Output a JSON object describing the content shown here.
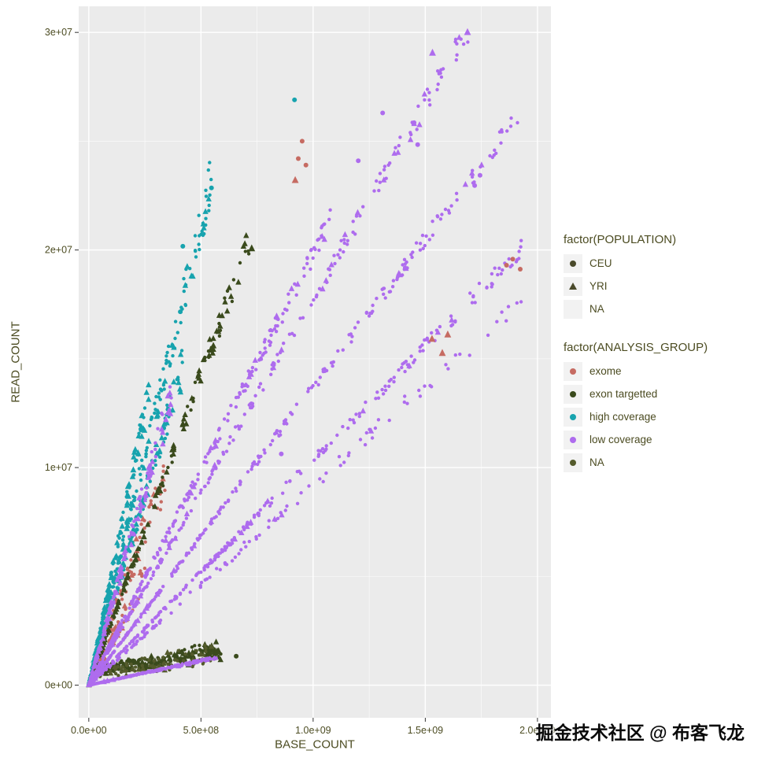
{
  "watermark": "掘金技术社区 @ 布客飞龙",
  "colors": {
    "panel": "#EBEBEB",
    "grid_major": "#FFFFFF",
    "grid_minor": "#F5F5F5",
    "tick_mark": "#333333",
    "text": "#4C4C22",
    "population_glyph": "#4A4A2B",
    "groups": {
      "exome": "#C66B62",
      "exon targetted": "#3A4A1C",
      "high coverage": "#17A3AE",
      "low coverage": "#AE6CEE",
      "NA": "#545B2C"
    }
  },
  "legend": {
    "population": {
      "title": "factor(POPULATION)",
      "items": [
        {
          "label": "CEU",
          "shape": "circle"
        },
        {
          "label": "YRI",
          "shape": "triangle"
        },
        {
          "label": "NA",
          "shape": "none"
        }
      ]
    },
    "analysis_group": {
      "title": "factor(ANALYSIS_GROUP)",
      "items": [
        {
          "label": "exome",
          "color": "#C66B62"
        },
        {
          "label": "exon targetted",
          "color": "#3A4A1C"
        },
        {
          "label": "high coverage",
          "color": "#17A3AE"
        },
        {
          "label": "low coverage",
          "color": "#AE6CEE"
        },
        {
          "label": "NA",
          "color": "#545B2C"
        }
      ]
    }
  },
  "chart_data": {
    "type": "scatter",
    "title": "",
    "xlabel": "BASE_COUNT",
    "ylabel": "READ_COUNT",
    "xlim": [
      -45000000.0,
      2060000000.0
    ],
    "ylim": [
      -1500000.0,
      31200000.0
    ],
    "x_ticks": [
      {
        "v": 0,
        "label": "0.0e+00"
      },
      {
        "v": 500000000.0,
        "label": "5.0e+08"
      },
      {
        "v": 1000000000.0,
        "label": "1.0e+09"
      },
      {
        "v": 1500000000.0,
        "label": "1.5e+09"
      },
      {
        "v": 2000000000.0,
        "label": "2.0e+09"
      }
    ],
    "y_ticks": [
      {
        "v": 0,
        "label": "0e+00"
      },
      {
        "v": 10000000.0,
        "label": "1e+07"
      },
      {
        "v": 20000000.0,
        "label": "2e+07"
      },
      {
        "v": 30000000.0,
        "label": "3e+07"
      }
    ],
    "x_minor": [
      250000000.0,
      750000000.0,
      1250000000.0,
      1750000000.0
    ],
    "y_minor": [
      5000000.0,
      15000000.0,
      25000000.0
    ],
    "legend_position": "right",
    "grid": true,
    "note": "Points lie on linear rays from the origin (READ_COUNT = slope * BASE_COUNT); shape encodes POPULATION (circle=CEU/NA, triangle=YRI), color encodes ANALYSIS_GROUP.",
    "rays": [
      {
        "group": "exon targetted",
        "slope": 0.0017,
        "intercept": 600000.0,
        "x_min": 20000000.0,
        "x_max": 590000000.0,
        "n": 240,
        "spread": 0.28,
        "triangle_frac": 0.45,
        "density": 1.2
      },
      {
        "group": "NA",
        "slope": 0.002,
        "intercept": 400000.0,
        "x_min": 30000000.0,
        "x_max": 550000000.0,
        "n": 70,
        "spread": 0.5,
        "triangle_frac": 0.3,
        "density": 1.2
      },
      {
        "group": "high coverage",
        "slope": 0.05,
        "intercept": 0,
        "x_min": 0,
        "x_max": 270000000.0,
        "n": 130,
        "spread": 0.06,
        "triangle_frac": 0.4,
        "density": 1.5
      },
      {
        "group": "high coverage",
        "slope": 0.0425,
        "intercept": 0,
        "x_min": 0,
        "x_max": 550000000.0,
        "n": 220,
        "spread": 0.05,
        "triangle_frac": 0.2,
        "density": 1.6
      },
      {
        "group": "high coverage",
        "slope": 0.035,
        "intercept": 0,
        "x_min": 0,
        "x_max": 430000000.0,
        "n": 170,
        "spread": 0.06,
        "triangle_frac": 0.3,
        "density": 1.5
      },
      {
        "group": "exome",
        "slope": 0.0285,
        "intercept": 0,
        "x_min": 0,
        "x_max": 340000000.0,
        "n": 80,
        "spread": 0.12,
        "triangle_frac": 0.3,
        "density": 1.5
      },
      {
        "group": "exome",
        "slope": 0.02,
        "intercept": 0,
        "x_min": 0,
        "x_max": 260000000.0,
        "n": 60,
        "spread": 0.15,
        "triangle_frac": 0.3,
        "density": 1.5
      },
      {
        "group": "exon targetted",
        "slope": 0.0285,
        "intercept": 0,
        "x_min": 0,
        "x_max": 720000000.0,
        "n": 170,
        "spread": 0.035,
        "triangle_frac": 0.6,
        "density": 1.6
      },
      {
        "group": "low coverage",
        "slope": 0.00225,
        "intercept": 0,
        "x_min": 0,
        "x_max": 570000000.0,
        "n": 190,
        "spread": 0.05,
        "triangle_frac": 0.05,
        "density": 1.3
      },
      {
        "group": "low coverage",
        "slope": 0.036,
        "intercept": 0,
        "x_min": 0,
        "x_max": 370000000.0,
        "n": 150,
        "spread": 0.07,
        "triangle_frac": 0.5,
        "density": 1.5
      },
      {
        "group": "low coverage",
        "slope": 0.0092,
        "intercept": 0,
        "x_min": 0,
        "x_max": 1950000000.0,
        "n": 130,
        "spread": 0.03,
        "triangle_frac": 0.05,
        "density": 1.9
      },
      {
        "group": "low coverage",
        "slope": 0.0104,
        "intercept": 0,
        "x_min": 0,
        "x_max": 1930000000.0,
        "n": 280,
        "spread": 0.02,
        "triangle_frac": 0.05,
        "density": 1.6
      },
      {
        "group": "low coverage",
        "slope": 0.0137,
        "intercept": 0,
        "x_min": 0,
        "x_max": 1920000000.0,
        "n": 280,
        "spread": 0.018,
        "triangle_frac": 0.05,
        "density": 1.6
      },
      {
        "group": "low coverage",
        "slope": 0.0178,
        "intercept": 0,
        "x_min": 0,
        "x_max": 1690000000.0,
        "n": 260,
        "spread": 0.02,
        "triangle_frac": 0.12,
        "density": 1.7
      },
      {
        "group": "low coverage",
        "slope": 0.0198,
        "intercept": 0,
        "x_min": 0,
        "x_max": 1080000000.0,
        "n": 240,
        "spread": 0.025,
        "triangle_frac": 0.1,
        "density": 1.5
      }
    ],
    "outliers": [
      {
        "x": 917000000.0,
        "y": 26900000.0,
        "g": "high coverage",
        "s": "circle"
      },
      {
        "x": 1688000000.0,
        "y": 30000000.0,
        "g": "low coverage",
        "s": "triangle"
      },
      {
        "x": 1532000000.0,
        "y": 29050000.0,
        "g": "low coverage",
        "s": "triangle"
      },
      {
        "x": 951000000.0,
        "y": 25000000.0,
        "g": "exome",
        "s": "circle"
      },
      {
        "x": 934000000.0,
        "y": 24200000.0,
        "g": "exome",
        "s": "circle"
      },
      {
        "x": 968000000.0,
        "y": 23900000.0,
        "g": "exome",
        "s": "circle"
      },
      {
        "x": 920000000.0,
        "y": 23200000.0,
        "g": "exome",
        "s": "triangle"
      },
      {
        "x": 1530000000.0,
        "y": 15900000.0,
        "g": "exome",
        "s": "triangle"
      },
      {
        "x": 1576000000.0,
        "y": 15250000.0,
        "g": "exome",
        "s": "triangle"
      },
      {
        "x": 1600000000.0,
        "y": 16100000.0,
        "g": "exome",
        "s": "triangle"
      },
      {
        "x": 1862000000.0,
        "y": 19300000.0,
        "g": "exome",
        "s": "circle"
      },
      {
        "x": 1890000000.0,
        "y": 19580000.0,
        "g": "exome",
        "s": "circle"
      },
      {
        "x": 1923000000.0,
        "y": 19120000.0,
        "g": "exome",
        "s": "circle"
      },
      {
        "x": 419000000.0,
        "y": 20170000.0,
        "g": "high coverage",
        "s": "circle"
      },
      {
        "x": 547000000.0,
        "y": 22850000.0,
        "g": "high coverage",
        "s": "circle"
      },
      {
        "x": 408000000.0,
        "y": 17160000.0,
        "g": "high coverage",
        "s": "circle"
      },
      {
        "x": 1720000000.0,
        "y": 22960000.0,
        "g": "low coverage",
        "s": "circle"
      },
      {
        "x": 1744000000.0,
        "y": 23430000.0,
        "g": "low coverage",
        "s": "circle"
      },
      {
        "x": 726000000.0,
        "y": 20060000.0,
        "g": "exon targetted",
        "s": "triangle"
      },
      {
        "x": 1310000000.0,
        "y": 26300000.0,
        "g": "low coverage",
        "s": "circle"
      },
      {
        "x": 1450000000.0,
        "y": 25850000.0,
        "g": "low coverage",
        "s": "circle"
      },
      {
        "x": 1466000000.0,
        "y": 24840000.0,
        "g": "low coverage",
        "s": "circle"
      },
      {
        "x": 1201000000.0,
        "y": 24100000.0,
        "g": "low coverage",
        "s": "circle"
      },
      {
        "x": 858000000.0,
        "y": 10630000.0,
        "g": "low coverage",
        "s": "circle"
      },
      {
        "x": 657000000.0,
        "y": 1330000.0,
        "g": "exon targetted",
        "s": "circle"
      }
    ]
  }
}
